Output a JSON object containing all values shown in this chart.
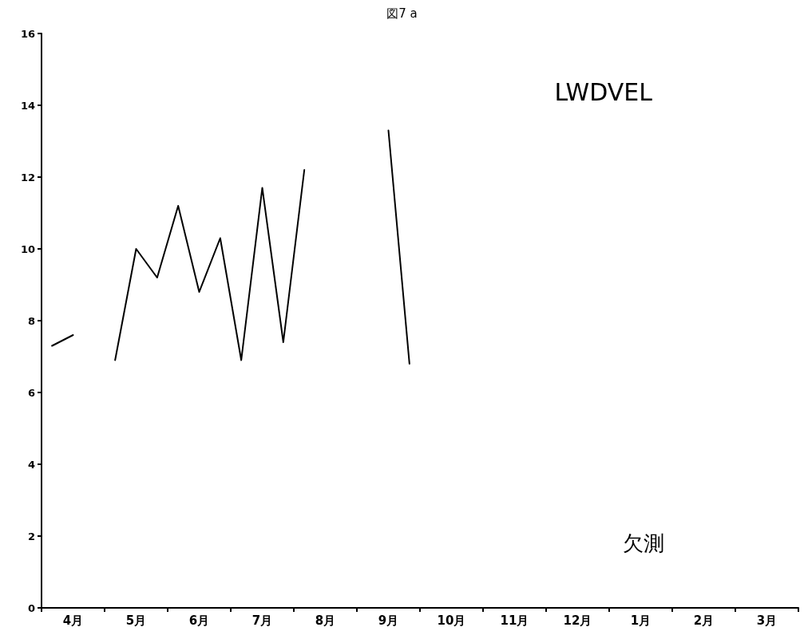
{
  "chart_data": {
    "type": "line",
    "title": "図7 a",
    "categories": [
      null,
      "4月",
      null,
      null,
      "5月",
      null,
      null,
      "6月",
      null,
      null,
      "7月",
      null,
      null,
      "8月",
      null,
      null,
      "9月",
      null,
      null,
      "10月",
      null,
      null,
      "11月",
      null,
      null,
      "12月",
      null,
      null,
      "1月",
      null,
      null,
      "2月",
      null,
      null,
      "3月",
      null
    ],
    "series": [
      {
        "color": "#000000",
        "values": [
          7.3,
          7.6,
          null,
          6.9,
          10.0,
          9.2,
          11.2,
          8.8,
          10.3,
          6.9,
          11.7,
          7.4,
          12.2,
          null,
          null,
          null,
          13.3,
          6.8,
          null,
          null,
          null,
          null,
          null,
          null,
          null,
          null,
          null,
          null,
          null,
          null,
          null,
          null,
          null,
          null,
          null,
          null
        ]
      }
    ],
    "ylim": [
      0,
      16
    ],
    "yticks": [
      0,
      2,
      4,
      6,
      8,
      10,
      12,
      14,
      16
    ],
    "annotations": [
      "LWDVEL",
      "欠測"
    ],
    "grid": false,
    "marker": "none",
    "line_style": "solid"
  }
}
